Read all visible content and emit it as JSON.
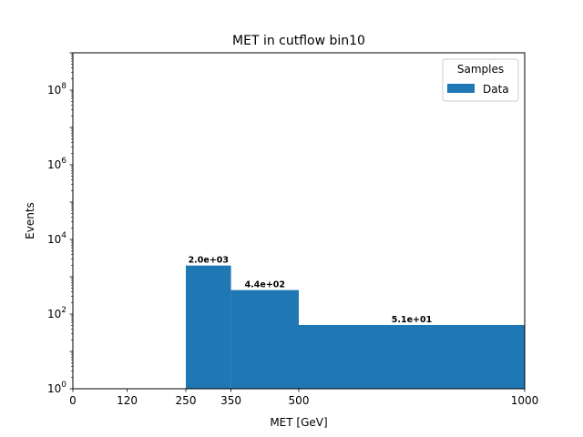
{
  "chart_data": {
    "type": "bar",
    "title": "MET in cutflow bin10",
    "xlabel": "MET [GeV]",
    "ylabel": "Events",
    "yscale": "log",
    "ylim": [
      1,
      1000000000
    ],
    "xlim": [
      0,
      1000
    ],
    "xticks": [
      0,
      120,
      250,
      350,
      500,
      1000
    ],
    "xtick_labels": [
      "0",
      "120",
      "250",
      "350",
      "500",
      "1000"
    ],
    "yticks": [
      1,
      100,
      10000,
      1000000,
      100000000
    ],
    "ytick_labels": [
      {
        "base": "10",
        "exp": "0"
      },
      {
        "base": "10",
        "exp": "2"
      },
      {
        "base": "10",
        "exp": "4"
      },
      {
        "base": "10",
        "exp": "6"
      },
      {
        "base": "10",
        "exp": "8"
      }
    ],
    "bins": [
      {
        "low": 250,
        "high": 350,
        "value": 2000,
        "label": "2.0e+03"
      },
      {
        "low": 350,
        "high": 500,
        "value": 440,
        "label": "4.4e+02"
      },
      {
        "low": 500,
        "high": 1000,
        "value": 51,
        "label": "5.1e+01"
      }
    ],
    "series": [
      {
        "name": "Data",
        "color": "#1f77b4"
      }
    ],
    "legend": {
      "title": "Samples",
      "position": "top-right"
    },
    "grid": false
  }
}
